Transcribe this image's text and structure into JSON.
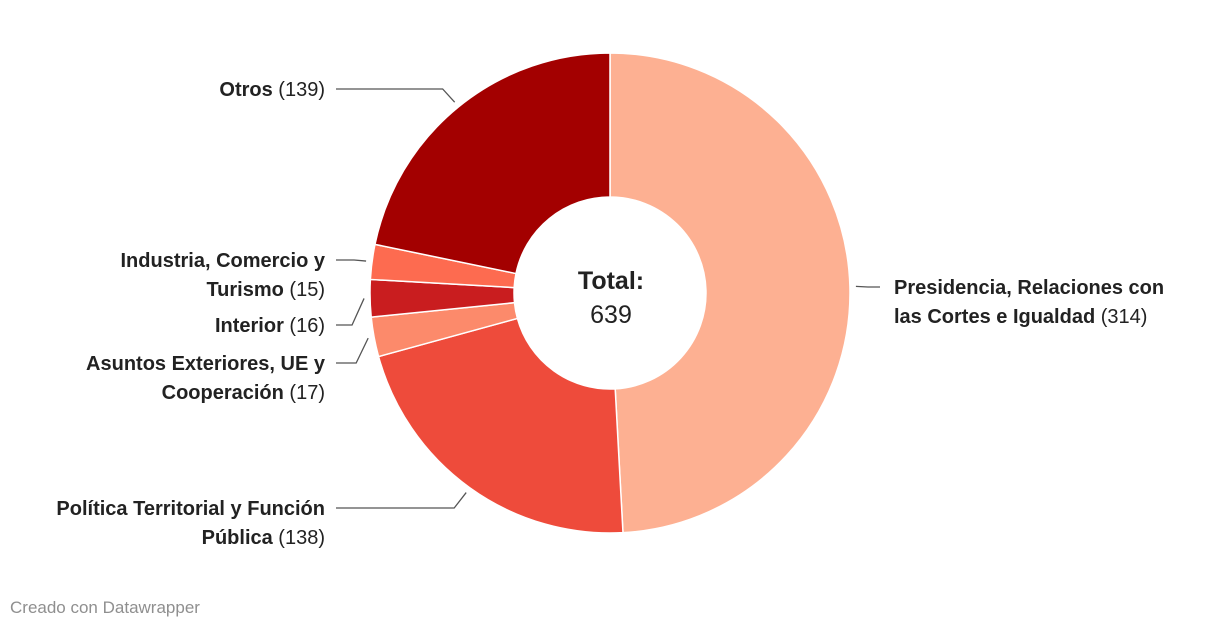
{
  "chart_data": {
    "type": "pie",
    "donut": true,
    "center_title": "Total:",
    "center_value": "639",
    "start_direction": "top, clockwise",
    "slices": [
      {
        "label_lines": [
          "Presidencia, Relaciones con",
          "las Cortes e Igualdad"
        ],
        "value": 314,
        "value_text": "(314)",
        "color": "#fdb092"
      },
      {
        "label_lines": [
          "Política Territorial y Función",
          "Pública"
        ],
        "value": 138,
        "value_text": "(138)",
        "color": "#ee4b3b"
      },
      {
        "label_lines": [
          "Asuntos Exteriores, UE y",
          "Cooperación"
        ],
        "value": 17,
        "value_text": "(17)",
        "color": "#fc8a6b"
      },
      {
        "label_lines": [
          "Interior"
        ],
        "value": 16,
        "value_text": "(16)",
        "color": "#c91d1f"
      },
      {
        "label_lines": [
          "Industria, Comercio y",
          "Turismo"
        ],
        "value": 15,
        "value_text": "(15)",
        "color": "#fd6b50"
      },
      {
        "label_lines": [
          "Otros"
        ],
        "value": 139,
        "value_text": "(139)",
        "color": "#a30000"
      }
    ]
  },
  "footer": {
    "credit": "Creado con Datawrapper"
  },
  "colors": {
    "text": "#222222",
    "leader": "#555555",
    "credit": "#8f8f8f"
  }
}
